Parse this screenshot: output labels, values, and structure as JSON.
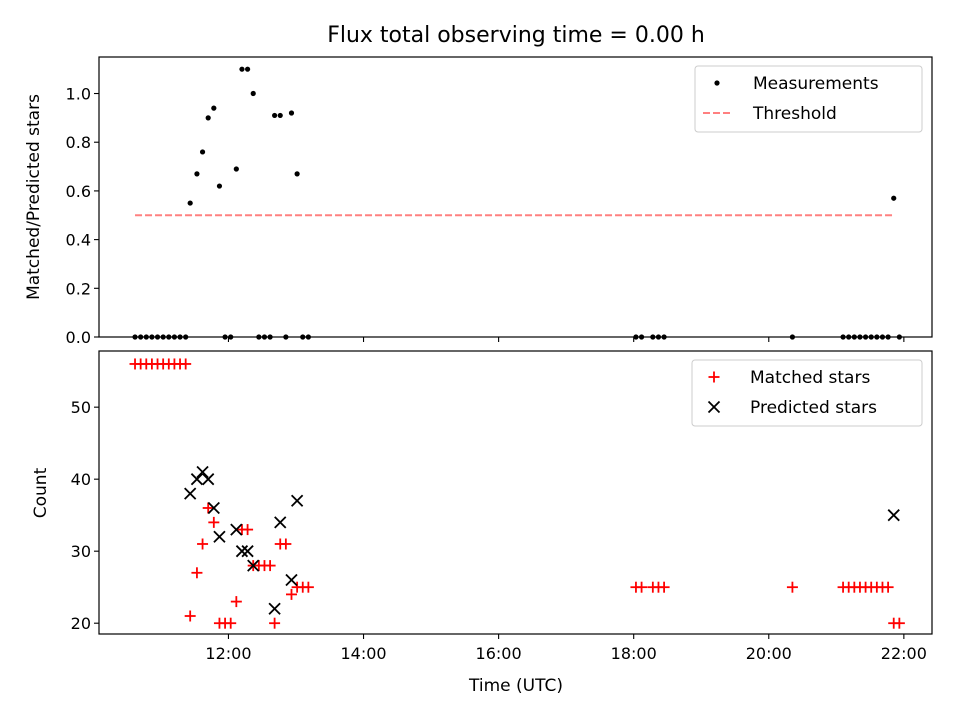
{
  "figure": {
    "title": "Flux total observing time = 0.00 h"
  },
  "chart_data": [
    {
      "type": "scatter",
      "ylabel": "Matched/Predicted stars",
      "xlim": [
        "10:05",
        "22:25"
      ],
      "ylim": [
        0,
        1.15
      ],
      "yticks": [
        "0.0",
        "0.2",
        "0.4",
        "0.6",
        "0.8",
        "1.0"
      ],
      "xticks": [
        "12:00",
        "14:00",
        "16:00",
        "18:00",
        "20:00",
        "22:00"
      ],
      "legend_position": "top-right",
      "grid": false,
      "series": [
        {
          "name": "Measurements",
          "kind": "points",
          "color": "#000000",
          "points": [
            {
              "t": "10:37",
              "v": 0.0
            },
            {
              "t": "10:42",
              "v": 0.0
            },
            {
              "t": "10:47",
              "v": 0.0
            },
            {
              "t": "10:52",
              "v": 0.0
            },
            {
              "t": "10:57",
              "v": 0.0
            },
            {
              "t": "11:02",
              "v": 0.0
            },
            {
              "t": "11:07",
              "v": 0.0
            },
            {
              "t": "11:12",
              "v": 0.0
            },
            {
              "t": "11:17",
              "v": 0.0
            },
            {
              "t": "11:22",
              "v": 0.0
            },
            {
              "t": "11:26",
              "v": 0.55
            },
            {
              "t": "11:32",
              "v": 0.67
            },
            {
              "t": "11:37",
              "v": 0.76
            },
            {
              "t": "11:42",
              "v": 0.9
            },
            {
              "t": "11:47",
              "v": 0.94
            },
            {
              "t": "11:52",
              "v": 0.62
            },
            {
              "t": "11:57",
              "v": 0.0
            },
            {
              "t": "12:02",
              "v": 0.0
            },
            {
              "t": "12:07",
              "v": 0.69
            },
            {
              "t": "12:12",
              "v": 1.1
            },
            {
              "t": "12:17",
              "v": 1.1
            },
            {
              "t": "12:22",
              "v": 1.0
            },
            {
              "t": "12:27",
              "v": 0.0
            },
            {
              "t": "12:32",
              "v": 0.0
            },
            {
              "t": "12:37",
              "v": 0.0
            },
            {
              "t": "12:41",
              "v": 0.91
            },
            {
              "t": "12:46",
              "v": 0.91
            },
            {
              "t": "12:51",
              "v": 0.0
            },
            {
              "t": "12:56",
              "v": 0.92
            },
            {
              "t": "13:01",
              "v": 0.67
            },
            {
              "t": "13:06",
              "v": 0.0
            },
            {
              "t": "13:11",
              "v": 0.0
            },
            {
              "t": "18:02",
              "v": 0.0
            },
            {
              "t": "18:07",
              "v": 0.0
            },
            {
              "t": "18:17",
              "v": 0.0
            },
            {
              "t": "18:22",
              "v": 0.0
            },
            {
              "t": "18:27",
              "v": 0.0
            },
            {
              "t": "20:21",
              "v": 0.0
            },
            {
              "t": "21:06",
              "v": 0.0
            },
            {
              "t": "21:11",
              "v": 0.0
            },
            {
              "t": "21:16",
              "v": 0.0
            },
            {
              "t": "21:21",
              "v": 0.0
            },
            {
              "t": "21:26",
              "v": 0.0
            },
            {
              "t": "21:31",
              "v": 0.0
            },
            {
              "t": "21:36",
              "v": 0.0
            },
            {
              "t": "21:41",
              "v": 0.0
            },
            {
              "t": "21:46",
              "v": 0.0
            },
            {
              "t": "21:51",
              "v": 0.57
            },
            {
              "t": "21:56",
              "v": 0.0
            }
          ]
        },
        {
          "name": "Threshold",
          "kind": "dashed-line",
          "color": "#ff8080",
          "points": [
            {
              "t": "10:37",
              "v": 0.5
            },
            {
              "t": "21:51",
              "v": 0.5
            }
          ]
        }
      ]
    },
    {
      "type": "scatter",
      "ylabel": "Count",
      "xlabel": "Time (UTC)",
      "xlim": [
        "10:05",
        "22:25"
      ],
      "ylim": [
        18.5,
        57.8
      ],
      "yticks": [
        "20",
        "30",
        "40",
        "50"
      ],
      "xticks": [
        "12:00",
        "14:00",
        "16:00",
        "18:00",
        "20:00",
        "22:00"
      ],
      "legend_position": "top-right",
      "grid": false,
      "series": [
        {
          "name": "Matched stars",
          "marker": "plus",
          "color": "#ff0000",
          "points": [
            {
              "t": "10:37",
              "v": 56
            },
            {
              "t": "10:42",
              "v": 56
            },
            {
              "t": "10:47",
              "v": 56
            },
            {
              "t": "10:52",
              "v": 56
            },
            {
              "t": "10:57",
              "v": 56
            },
            {
              "t": "11:02",
              "v": 56
            },
            {
              "t": "11:07",
              "v": 56
            },
            {
              "t": "11:12",
              "v": 56
            },
            {
              "t": "11:17",
              "v": 56
            },
            {
              "t": "11:22",
              "v": 56
            },
            {
              "t": "11:26",
              "v": 21
            },
            {
              "t": "11:32",
              "v": 27
            },
            {
              "t": "11:37",
              "v": 31
            },
            {
              "t": "11:42",
              "v": 36
            },
            {
              "t": "11:47",
              "v": 34
            },
            {
              "t": "11:52",
              "v": 20
            },
            {
              "t": "11:57",
              "v": 20
            },
            {
              "t": "12:02",
              "v": 20
            },
            {
              "t": "12:07",
              "v": 23
            },
            {
              "t": "12:12",
              "v": 33
            },
            {
              "t": "12:17",
              "v": 33
            },
            {
              "t": "12:22",
              "v": 28
            },
            {
              "t": "12:27",
              "v": 28
            },
            {
              "t": "12:32",
              "v": 28
            },
            {
              "t": "12:37",
              "v": 28
            },
            {
              "t": "12:41",
              "v": 20
            },
            {
              "t": "12:46",
              "v": 31
            },
            {
              "t": "12:51",
              "v": 31
            },
            {
              "t": "12:56",
              "v": 24
            },
            {
              "t": "13:01",
              "v": 25
            },
            {
              "t": "13:06",
              "v": 25
            },
            {
              "t": "13:11",
              "v": 25
            },
            {
              "t": "18:02",
              "v": 25
            },
            {
              "t": "18:07",
              "v": 25
            },
            {
              "t": "18:17",
              "v": 25
            },
            {
              "t": "18:22",
              "v": 25
            },
            {
              "t": "18:27",
              "v": 25
            },
            {
              "t": "20:21",
              "v": 25
            },
            {
              "t": "21:06",
              "v": 25
            },
            {
              "t": "21:11",
              "v": 25
            },
            {
              "t": "21:16",
              "v": 25
            },
            {
              "t": "21:21",
              "v": 25
            },
            {
              "t": "21:26",
              "v": 25
            },
            {
              "t": "21:31",
              "v": 25
            },
            {
              "t": "21:36",
              "v": 25
            },
            {
              "t": "21:41",
              "v": 25
            },
            {
              "t": "21:46",
              "v": 25
            },
            {
              "t": "21:51",
              "v": 20
            },
            {
              "t": "21:56",
              "v": 20
            }
          ]
        },
        {
          "name": "Predicted stars",
          "marker": "x",
          "color": "#000000",
          "points": [
            {
              "t": "11:26",
              "v": 38
            },
            {
              "t": "11:32",
              "v": 40
            },
            {
              "t": "11:37",
              "v": 41
            },
            {
              "t": "11:42",
              "v": 40
            },
            {
              "t": "11:47",
              "v": 36
            },
            {
              "t": "11:52",
              "v": 32
            },
            {
              "t": "12:07",
              "v": 33
            },
            {
              "t": "12:12",
              "v": 30
            },
            {
              "t": "12:17",
              "v": 30
            },
            {
              "t": "12:22",
              "v": 28
            },
            {
              "t": "12:41",
              "v": 22
            },
            {
              "t": "12:46",
              "v": 34
            },
            {
              "t": "12:56",
              "v": 26
            },
            {
              "t": "13:01",
              "v": 37
            },
            {
              "t": "21:51",
              "v": 35
            }
          ]
        }
      ]
    }
  ]
}
